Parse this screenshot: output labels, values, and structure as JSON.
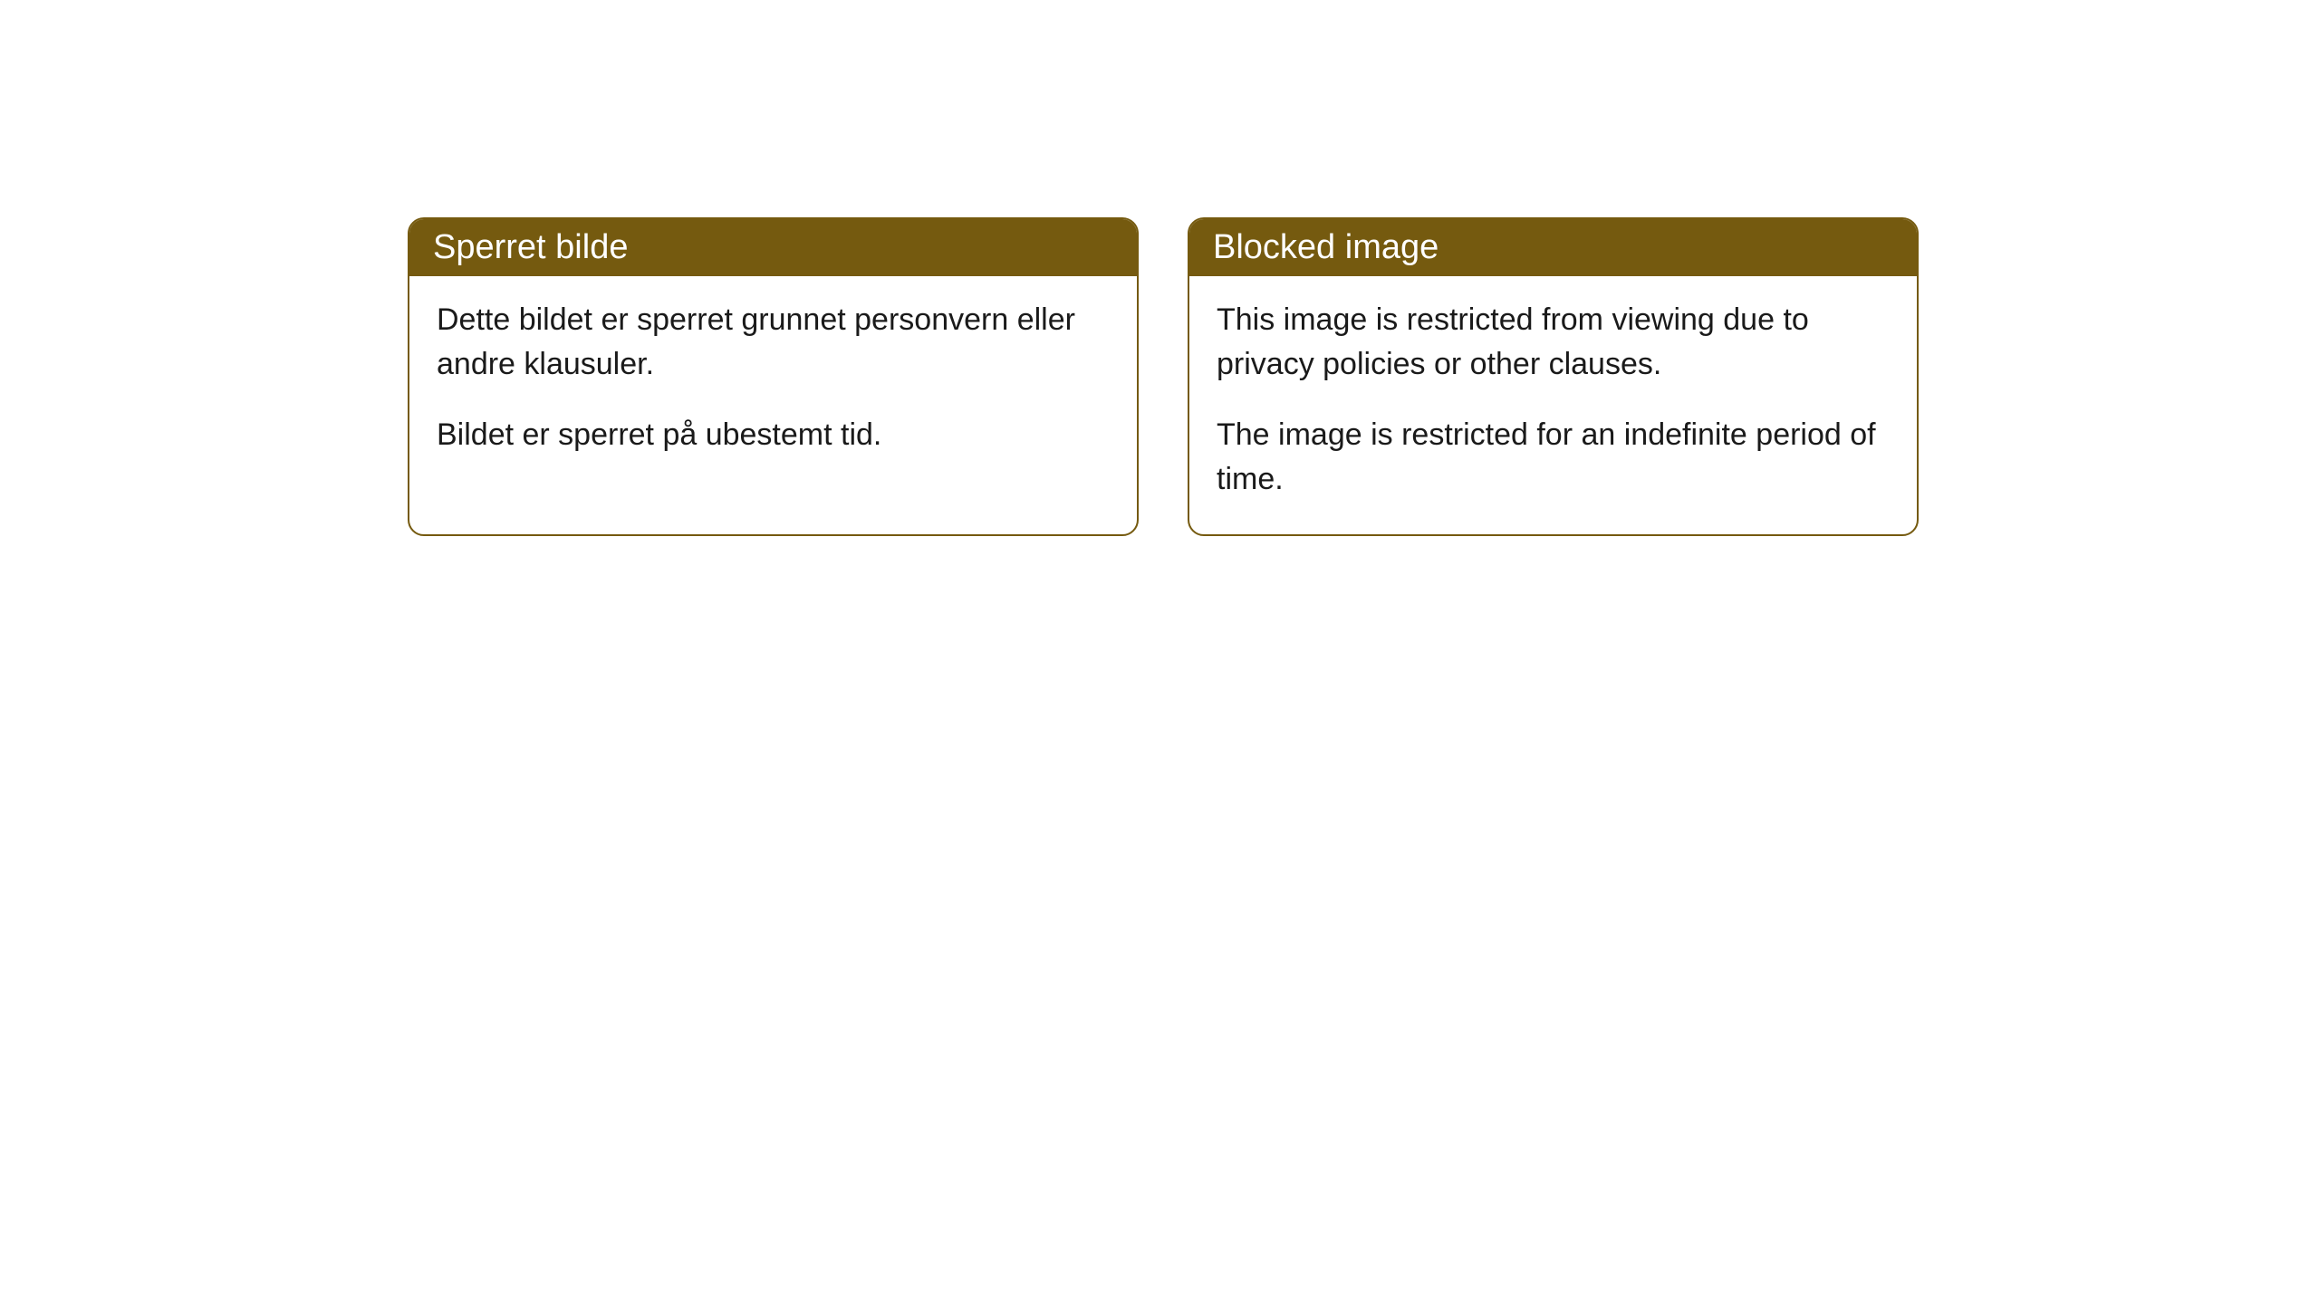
{
  "cards": [
    {
      "title": "Sperret bilde",
      "paragraph1": "Dette bildet er sperret grunnet personvern eller andre klausuler.",
      "paragraph2": "Bildet er sperret på ubestemt tid."
    },
    {
      "title": "Blocked image",
      "paragraph1": "This image is restricted from viewing due to privacy policies or other clauses.",
      "paragraph2": "The image is restricted for an indefinite period of time."
    }
  ],
  "styling": {
    "header_background": "#755a0f",
    "header_text_color": "#ffffff",
    "border_color": "#755a0f",
    "body_text_color": "#1a1a1a",
    "card_background": "#ffffff",
    "border_radius": 18,
    "header_fontsize": 38,
    "body_fontsize": 34
  }
}
